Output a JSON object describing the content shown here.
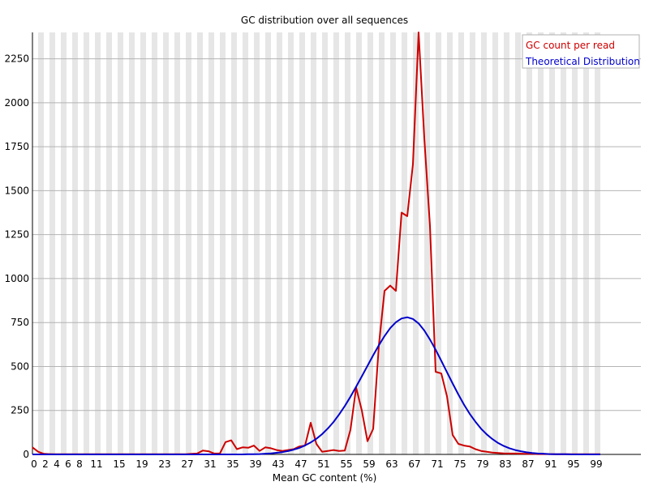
{
  "chart_data": {
    "type": "line",
    "title": "GC distribution over all sequences",
    "xlabel": "Mean GC content (%)",
    "ylabel": "",
    "xlim": [
      0,
      100
    ],
    "ylim": [
      0,
      2400
    ],
    "y_ticks": [
      0,
      250,
      500,
      750,
      1000,
      1250,
      1500,
      1750,
      2000,
      2250
    ],
    "x_tick_labels": [
      "0",
      "2",
      "4",
      "6",
      "8",
      "11",
      "15",
      "19",
      "23",
      "27",
      "31",
      "35",
      "39",
      "43",
      "47",
      "51",
      "55",
      "59",
      "63",
      "67",
      "71",
      "75",
      "79",
      "83",
      "87",
      "91",
      "95",
      "99"
    ],
    "grid": true,
    "legend_position": "top-right",
    "series": [
      {
        "name": "GC count per read",
        "color": "#cc0000",
        "x": [
          0,
          1,
          2,
          3,
          4,
          5,
          6,
          7,
          8,
          9,
          10,
          11,
          12,
          13,
          14,
          15,
          16,
          17,
          18,
          19,
          20,
          21,
          22,
          23,
          24,
          25,
          26,
          27,
          28,
          29,
          30,
          31,
          32,
          33,
          34,
          35,
          36,
          37,
          38,
          39,
          40,
          41,
          42,
          43,
          44,
          45,
          46,
          47,
          48,
          49,
          50,
          51,
          52,
          53,
          54,
          55,
          56,
          57,
          58,
          59,
          60,
          61,
          62,
          63,
          64,
          65,
          66,
          67,
          68,
          69,
          70,
          71,
          72,
          73,
          74,
          75,
          76,
          77,
          78,
          79,
          80,
          81,
          82,
          83,
          84,
          85,
          86,
          87,
          88,
          89,
          90,
          91,
          92,
          93,
          94,
          95,
          96,
          97,
          98,
          99,
          100
        ],
        "values": [
          40,
          15,
          3,
          2,
          1,
          1,
          1,
          1,
          1,
          1,
          1,
          1,
          1,
          1,
          1,
          1,
          1,
          1,
          1,
          1,
          1,
          1,
          1,
          1,
          1,
          1,
          1,
          1,
          3,
          5,
          22,
          18,
          5,
          5,
          70,
          80,
          30,
          40,
          38,
          50,
          20,
          40,
          35,
          25,
          20,
          25,
          30,
          45,
          50,
          180,
          60,
          15,
          20,
          25,
          20,
          22,
          140,
          380,
          250,
          75,
          145,
          620,
          930,
          960,
          930,
          1375,
          1355,
          1650,
          2400,
          1800,
          1300,
          470,
          460,
          330,
          110,
          60,
          50,
          45,
          30,
          20,
          15,
          10,
          8,
          6,
          5,
          5,
          4,
          3,
          3,
          2,
          2,
          2,
          1,
          1,
          1,
          1,
          1,
          1,
          1,
          1,
          1
        ]
      },
      {
        "name": "Theoretical Distribution",
        "color": "#0000cc",
        "x": [
          0,
          1,
          2,
          3,
          4,
          5,
          6,
          7,
          8,
          9,
          10,
          11,
          12,
          13,
          14,
          15,
          16,
          17,
          18,
          19,
          20,
          21,
          22,
          23,
          24,
          25,
          26,
          27,
          28,
          29,
          30,
          31,
          32,
          33,
          34,
          35,
          36,
          37,
          38,
          39,
          40,
          41,
          42,
          43,
          44,
          45,
          46,
          47,
          48,
          49,
          50,
          51,
          52,
          53,
          54,
          55,
          56,
          57,
          58,
          59,
          60,
          61,
          62,
          63,
          64,
          65,
          66,
          67,
          68,
          69,
          70,
          71,
          72,
          73,
          74,
          75,
          76,
          77,
          78,
          79,
          80,
          81,
          82,
          83,
          84,
          85,
          86,
          87,
          88,
          89,
          90,
          91,
          92,
          93,
          94,
          95,
          96,
          97,
          98,
          99,
          100
        ],
        "values": [
          0,
          0,
          0,
          0,
          0,
          0,
          0,
          0,
          0,
          0,
          0,
          0,
          0,
          0,
          0,
          0,
          0,
          0,
          0,
          0,
          0,
          0,
          0,
          0,
          0,
          0,
          0,
          0,
          0,
          0,
          0,
          0,
          0,
          0,
          0,
          0,
          0,
          0,
          1,
          1,
          2,
          4,
          6,
          9,
          13,
          19,
          27,
          37,
          51,
          68,
          89,
          115,
          147,
          184,
          227,
          275,
          328,
          385,
          444,
          504,
          564,
          621,
          673,
          718,
          752,
          773,
          780,
          770,
          745,
          705,
          653,
          595,
          532,
          467,
          403,
          341,
          283,
          231,
          186,
          146,
          114,
          87,
          65,
          48,
          35,
          25,
          18,
          12,
          8,
          5,
          4,
          2,
          1,
          1,
          1,
          0,
          0,
          0,
          0,
          0,
          0
        ]
      }
    ]
  }
}
